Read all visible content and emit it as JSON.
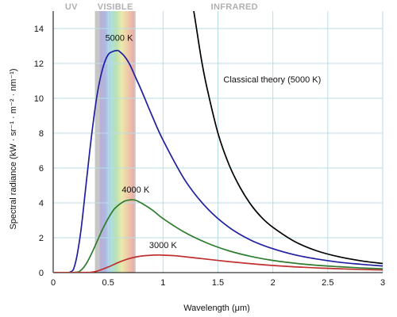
{
  "chart_data": {
    "type": "line",
    "xlabel": "Wavelength (μm)",
    "ylabel": "Spectral radiance (kW · sr⁻¹ · m⁻² · nm⁻¹)",
    "xlim": [
      0,
      3
    ],
    "ylim": [
      0,
      15
    ],
    "x_ticks": [
      0,
      0.5,
      1,
      1.5,
      2,
      2.5,
      3
    ],
    "x_tick_labels": [
      "0",
      "0.5",
      "1",
      "1.5",
      "2",
      "2.5",
      "3"
    ],
    "y_ticks": [
      0,
      2,
      4,
      6,
      8,
      10,
      12,
      14
    ],
    "y_tick_labels": [
      "0",
      "2",
      "4",
      "6",
      "8",
      "10",
      "12",
      "14"
    ],
    "grid": true,
    "regions": [
      {
        "name": "UV",
        "range": [
          0,
          0.38
        ]
      },
      {
        "name": "VISIBLE",
        "range": [
          0.38,
          0.75
        ]
      },
      {
        "name": "INFRARED",
        "range": [
          0.75,
          3
        ]
      }
    ],
    "series": [
      {
        "name": "5000 K",
        "color": "#1f1fa0",
        "x": [
          0.15,
          0.2,
          0.25,
          0.3,
          0.35,
          0.4,
          0.45,
          0.5,
          0.55,
          0.58,
          0.6,
          0.65,
          0.7,
          0.75,
          0.8,
          0.9,
          1.0,
          1.2,
          1.4,
          1.6,
          1.8,
          2.0,
          2.2,
          2.4,
          2.6,
          2.8,
          3.0
        ],
        "values": [
          0.02,
          0.5,
          2.3,
          5.1,
          7.9,
          10.2,
          11.7,
          12.5,
          12.7,
          12.74,
          12.7,
          12.4,
          11.9,
          11.2,
          10.5,
          9.0,
          7.6,
          5.3,
          3.7,
          2.6,
          1.86,
          1.37,
          1.02,
          0.78,
          0.6,
          0.48,
          0.38
        ]
      },
      {
        "name": "4000 K",
        "color": "#2e7d2e",
        "x": [
          0.2,
          0.25,
          0.3,
          0.35,
          0.4,
          0.45,
          0.5,
          0.55,
          0.6,
          0.65,
          0.7,
          0.72,
          0.75,
          0.8,
          0.9,
          1.0,
          1.2,
          1.4,
          1.6,
          1.8,
          2.0,
          2.2,
          2.4,
          2.6,
          2.8,
          3.0
        ],
        "values": [
          0.02,
          0.12,
          0.5,
          1.1,
          1.8,
          2.5,
          3.1,
          3.6,
          3.9,
          4.1,
          4.17,
          4.18,
          4.15,
          4.0,
          3.6,
          3.1,
          2.3,
          1.7,
          1.25,
          0.93,
          0.7,
          0.54,
          0.42,
          0.34,
          0.27,
          0.22
        ]
      },
      {
        "name": "3000 K",
        "color": "#c03030",
        "x": [
          0.3,
          0.35,
          0.4,
          0.5,
          0.6,
          0.7,
          0.8,
          0.9,
          0.97,
          1.0,
          1.1,
          1.2,
          1.4,
          1.6,
          1.8,
          2.0,
          2.2,
          2.4,
          2.6,
          2.8,
          3.0
        ],
        "values": [
          0.01,
          0.03,
          0.09,
          0.32,
          0.6,
          0.82,
          0.95,
          1.0,
          1.01,
          1.0,
          0.97,
          0.91,
          0.77,
          0.63,
          0.51,
          0.41,
          0.33,
          0.27,
          0.22,
          0.18,
          0.15
        ]
      },
      {
        "name": "Classical theory (5000 K)",
        "color": "#000000",
        "x": [
          1.28,
          1.3,
          1.35,
          1.4,
          1.5,
          1.6,
          1.7,
          1.8,
          1.9,
          2.0,
          2.2,
          2.4,
          2.6,
          2.8,
          3.0
        ],
        "values": [
          15.0,
          14.2,
          12.2,
          10.6,
          8.0,
          6.2,
          4.9,
          3.9,
          3.15,
          2.6,
          1.78,
          1.25,
          0.91,
          0.68,
          0.52
        ]
      }
    ],
    "annotations": [
      {
        "text": "5000 K",
        "x": 0.6,
        "y": 13.3
      },
      {
        "text": "4000 K",
        "x": 0.75,
        "y": 4.6
      },
      {
        "text": "3000 K",
        "x": 1.0,
        "y": 1.4
      },
      {
        "text": "Classical theory (5000 K)",
        "x": 1.55,
        "y": 10.9
      }
    ]
  }
}
